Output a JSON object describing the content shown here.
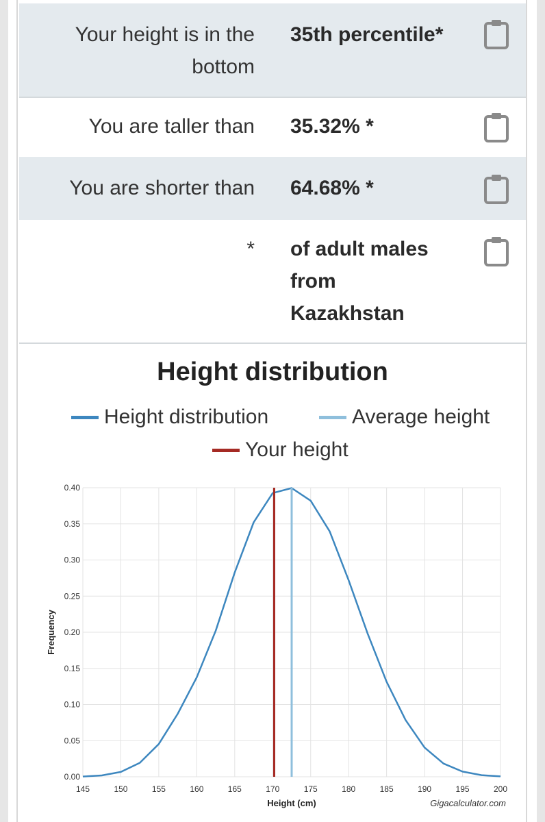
{
  "rows": [
    {
      "label": "Your height is in the bottom",
      "value": "35th percentile*"
    },
    {
      "label": "You are taller than",
      "value": "35.32% *"
    },
    {
      "label": "You are shorter than",
      "value": "64.68% *"
    },
    {
      "label": "*",
      "value": "of adult males from Kazakhstan"
    }
  ],
  "colors": {
    "distribution": "#3d87bf",
    "average": "#8fbfdc",
    "your_height": "#a52a24",
    "shaded_row": "#e4eaee",
    "grid": "#e3e3e3"
  },
  "chart_data": {
    "type": "line",
    "title": "Height distribution",
    "xlabel": "Height (cm)",
    "ylabel": "Frequency",
    "xlim": [
      145,
      200
    ],
    "ylim": [
      0,
      0.4
    ],
    "xticks": [
      "145",
      "150",
      "155",
      "160",
      "165",
      "170",
      "175",
      "180",
      "185",
      "190",
      "195",
      "200"
    ],
    "yticks": [
      "0.00",
      "0.05",
      "0.10",
      "0.15",
      "0.20",
      "0.25",
      "0.30",
      "0.35",
      "0.40"
    ],
    "grid": true,
    "legend_position": "top",
    "series": [
      {
        "name": "Height distribution",
        "x": [
          145,
          147.5,
          150,
          152.5,
          155,
          157.5,
          160,
          162.5,
          165,
          167.5,
          170,
          172.5,
          175,
          177.5,
          180,
          182.5,
          185,
          187.5,
          190,
          192.5,
          195,
          197.5,
          200
        ],
        "y": [
          0.0004,
          0.0019,
          0.0067,
          0.0193,
          0.0453,
          0.0872,
          0.1377,
          0.2022,
          0.2827,
          0.3521,
          0.3926,
          0.3995,
          0.3821,
          0.3396,
          0.2719,
          0.1983,
          0.1316,
          0.0785,
          0.0405,
          0.0183,
          0.0072,
          0.0023,
          0.0006
        ]
      },
      {
        "name": "Average height",
        "x": 172.5
      },
      {
        "name": "Your height",
        "x": 170.2
      }
    ],
    "watermark": "Gigacalculator.com"
  }
}
